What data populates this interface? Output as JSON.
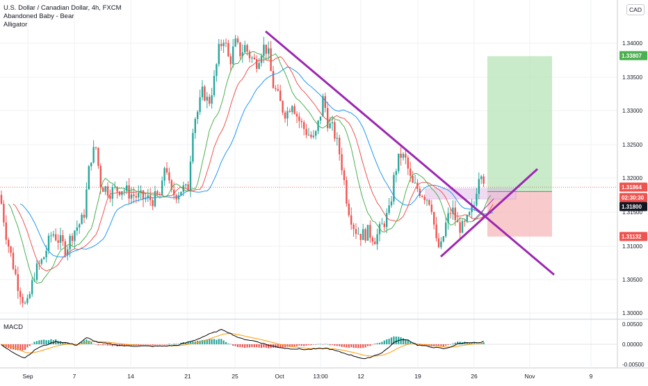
{
  "header": {
    "symbol": "U.S. Dollar / Canadian Dollar, 4h, FXCM",
    "indicators": [
      "Abandoned Baby - Bear",
      "Alligator"
    ],
    "currency": "CAD"
  },
  "lower_pane": {
    "label": "MACD"
  },
  "colors": {
    "up": "#26a69a",
    "down": "#ef5350",
    "jaw": "#2196f3",
    "teeth": "#ef5350",
    "lips": "#4caf50",
    "trendline": "#9c27b0",
    "profit_zone": "#b7e4b8",
    "loss_zone": "#f7b8bb",
    "macd_line": "#000000",
    "signal_line": "#ff9800"
  },
  "chart_data": [
    {
      "type": "candlestick",
      "title": "U.S. Dollar / Canadian Dollar, 4h, FXCM",
      "x_ticks": [
        "Sep",
        "7",
        "14",
        "21",
        "25",
        "Oct",
        "13:00",
        "12",
        "19",
        "26",
        "Nov",
        "9"
      ],
      "y_ticks": [
        "1.30000",
        "1.30500",
        "1.31000",
        "1.31500",
        "1.32000",
        "1.32500",
        "1.33000",
        "1.33500",
        "1.34000"
      ],
      "ylim": [
        1.299,
        1.3455
      ],
      "price_labels": [
        {
          "label": "1.33807",
          "value": 1.33807,
          "color": "#4caf50"
        },
        {
          "label": "1.31864",
          "value": 1.31864,
          "color": "#ef5350"
        },
        {
          "label": "02:30:30",
          "value": 1.3173,
          "color": "#ef5350"
        },
        {
          "label": "1.31800",
          "value": 1.318,
          "color": "#131722"
        },
        {
          "label": "1.31132",
          "value": 1.31132,
          "color": "#ef5350"
        }
      ],
      "anchors": [
        [
          0,
          1.3175
        ],
        [
          10,
          1.311
        ],
        [
          25,
          1.3045
        ],
        [
          38,
          1.3005
        ],
        [
          50,
          1.306
        ],
        [
          62,
          1.308
        ],
        [
          75,
          1.312
        ],
        [
          95,
          1.3095
        ],
        [
          105,
          1.312
        ],
        [
          120,
          1.314
        ],
        [
          130,
          1.323
        ],
        [
          138,
          1.3245
        ],
        [
          145,
          1.319
        ],
        [
          158,
          1.318
        ],
        [
          175,
          1.3185
        ],
        [
          190,
          1.3175
        ],
        [
          205,
          1.317
        ],
        [
          220,
          1.3168
        ],
        [
          232,
          1.3175
        ],
        [
          238,
          1.323
        ],
        [
          245,
          1.3175
        ],
        [
          255,
          1.3178
        ],
        [
          262,
          1.3185
        ],
        [
          270,
          1.318
        ],
        [
          278,
          1.3285
        ],
        [
          285,
          1.33
        ],
        [
          292,
          1.333
        ],
        [
          300,
          1.331
        ],
        [
          308,
          1.3345
        ],
        [
          315,
          1.339
        ],
        [
          322,
          1.341
        ],
        [
          330,
          1.337
        ],
        [
          338,
          1.34
        ],
        [
          346,
          1.3385
        ],
        [
          352,
          1.3395
        ],
        [
          360,
          1.338
        ],
        [
          368,
          1.337
        ],
        [
          378,
          1.3395
        ],
        [
          385,
          1.339
        ],
        [
          392,
          1.334
        ],
        [
          398,
          1.3325
        ],
        [
          405,
          1.3305
        ],
        [
          412,
          1.3295
        ],
        [
          420,
          1.3315
        ],
        [
          428,
          1.329
        ],
        [
          436,
          1.3275
        ],
        [
          444,
          1.3265
        ],
        [
          452,
          1.3255
        ],
        [
          460,
          1.329
        ],
        [
          465,
          1.332
        ],
        [
          472,
          1.328
        ],
        [
          480,
          1.327
        ],
        [
          490,
          1.323
        ],
        [
          500,
          1.316
        ],
        [
          510,
          1.3125
        ],
        [
          520,
          1.3115
        ],
        [
          530,
          1.312
        ],
        [
          540,
          1.311
        ],
        [
          550,
          1.313
        ],
        [
          560,
          1.315
        ],
        [
          568,
          1.321
        ],
        [
          576,
          1.3235
        ],
        [
          584,
          1.3225
        ],
        [
          592,
          1.319
        ],
        [
          600,
          1.3185
        ],
        [
          610,
          1.3175
        ],
        [
          620,
          1.3165
        ],
        [
          628,
          1.31
        ],
        [
          634,
          1.3095
        ],
        [
          642,
          1.3135
        ],
        [
          650,
          1.3155
        ],
        [
          658,
          1.313
        ],
        [
          666,
          1.3125
        ],
        [
          674,
          1.314
        ],
        [
          682,
          1.316
        ],
        [
          688,
          1.3205
        ],
        [
          693,
          1.3215
        ],
        [
          698,
          1.3186
        ]
      ]
    },
    {
      "type": "macd",
      "title": "MACD",
      "y_ticks": [
        "-0.00500",
        "0.00000",
        "0.00500"
      ],
      "ylim": [
        -0.0062,
        0.0062
      ],
      "macd_anchors": [
        [
          0,
          0.0
        ],
        [
          15,
          -0.002
        ],
        [
          35,
          -0.0042
        ],
        [
          55,
          -0.001
        ],
        [
          80,
          0.0008
        ],
        [
          95,
          0.0005
        ],
        [
          110,
          -0.0003
        ],
        [
          125,
          0.002
        ],
        [
          140,
          0.0006
        ],
        [
          180,
          -0.0005
        ],
        [
          230,
          -0.0006
        ],
        [
          255,
          -0.0003
        ],
        [
          280,
          0.0012
        ],
        [
          300,
          0.003
        ],
        [
          320,
          0.0045
        ],
        [
          345,
          0.0018
        ],
        [
          370,
          0.0008
        ],
        [
          390,
          -0.0005
        ],
        [
          410,
          -0.0012
        ],
        [
          440,
          -0.0016
        ],
        [
          470,
          -0.0012
        ],
        [
          500,
          -0.003
        ],
        [
          525,
          -0.0045
        ],
        [
          550,
          -0.0025
        ],
        [
          570,
          0.001
        ],
        [
          585,
          0.0015
        ],
        [
          600,
          -0.0002
        ],
        [
          620,
          -0.0008
        ],
        [
          640,
          -0.0014
        ],
        [
          660,
          0.0002
        ],
        [
          675,
          0.0006
        ],
        [
          690,
          0.0004
        ],
        [
          698,
          0.001
        ]
      ]
    }
  ]
}
